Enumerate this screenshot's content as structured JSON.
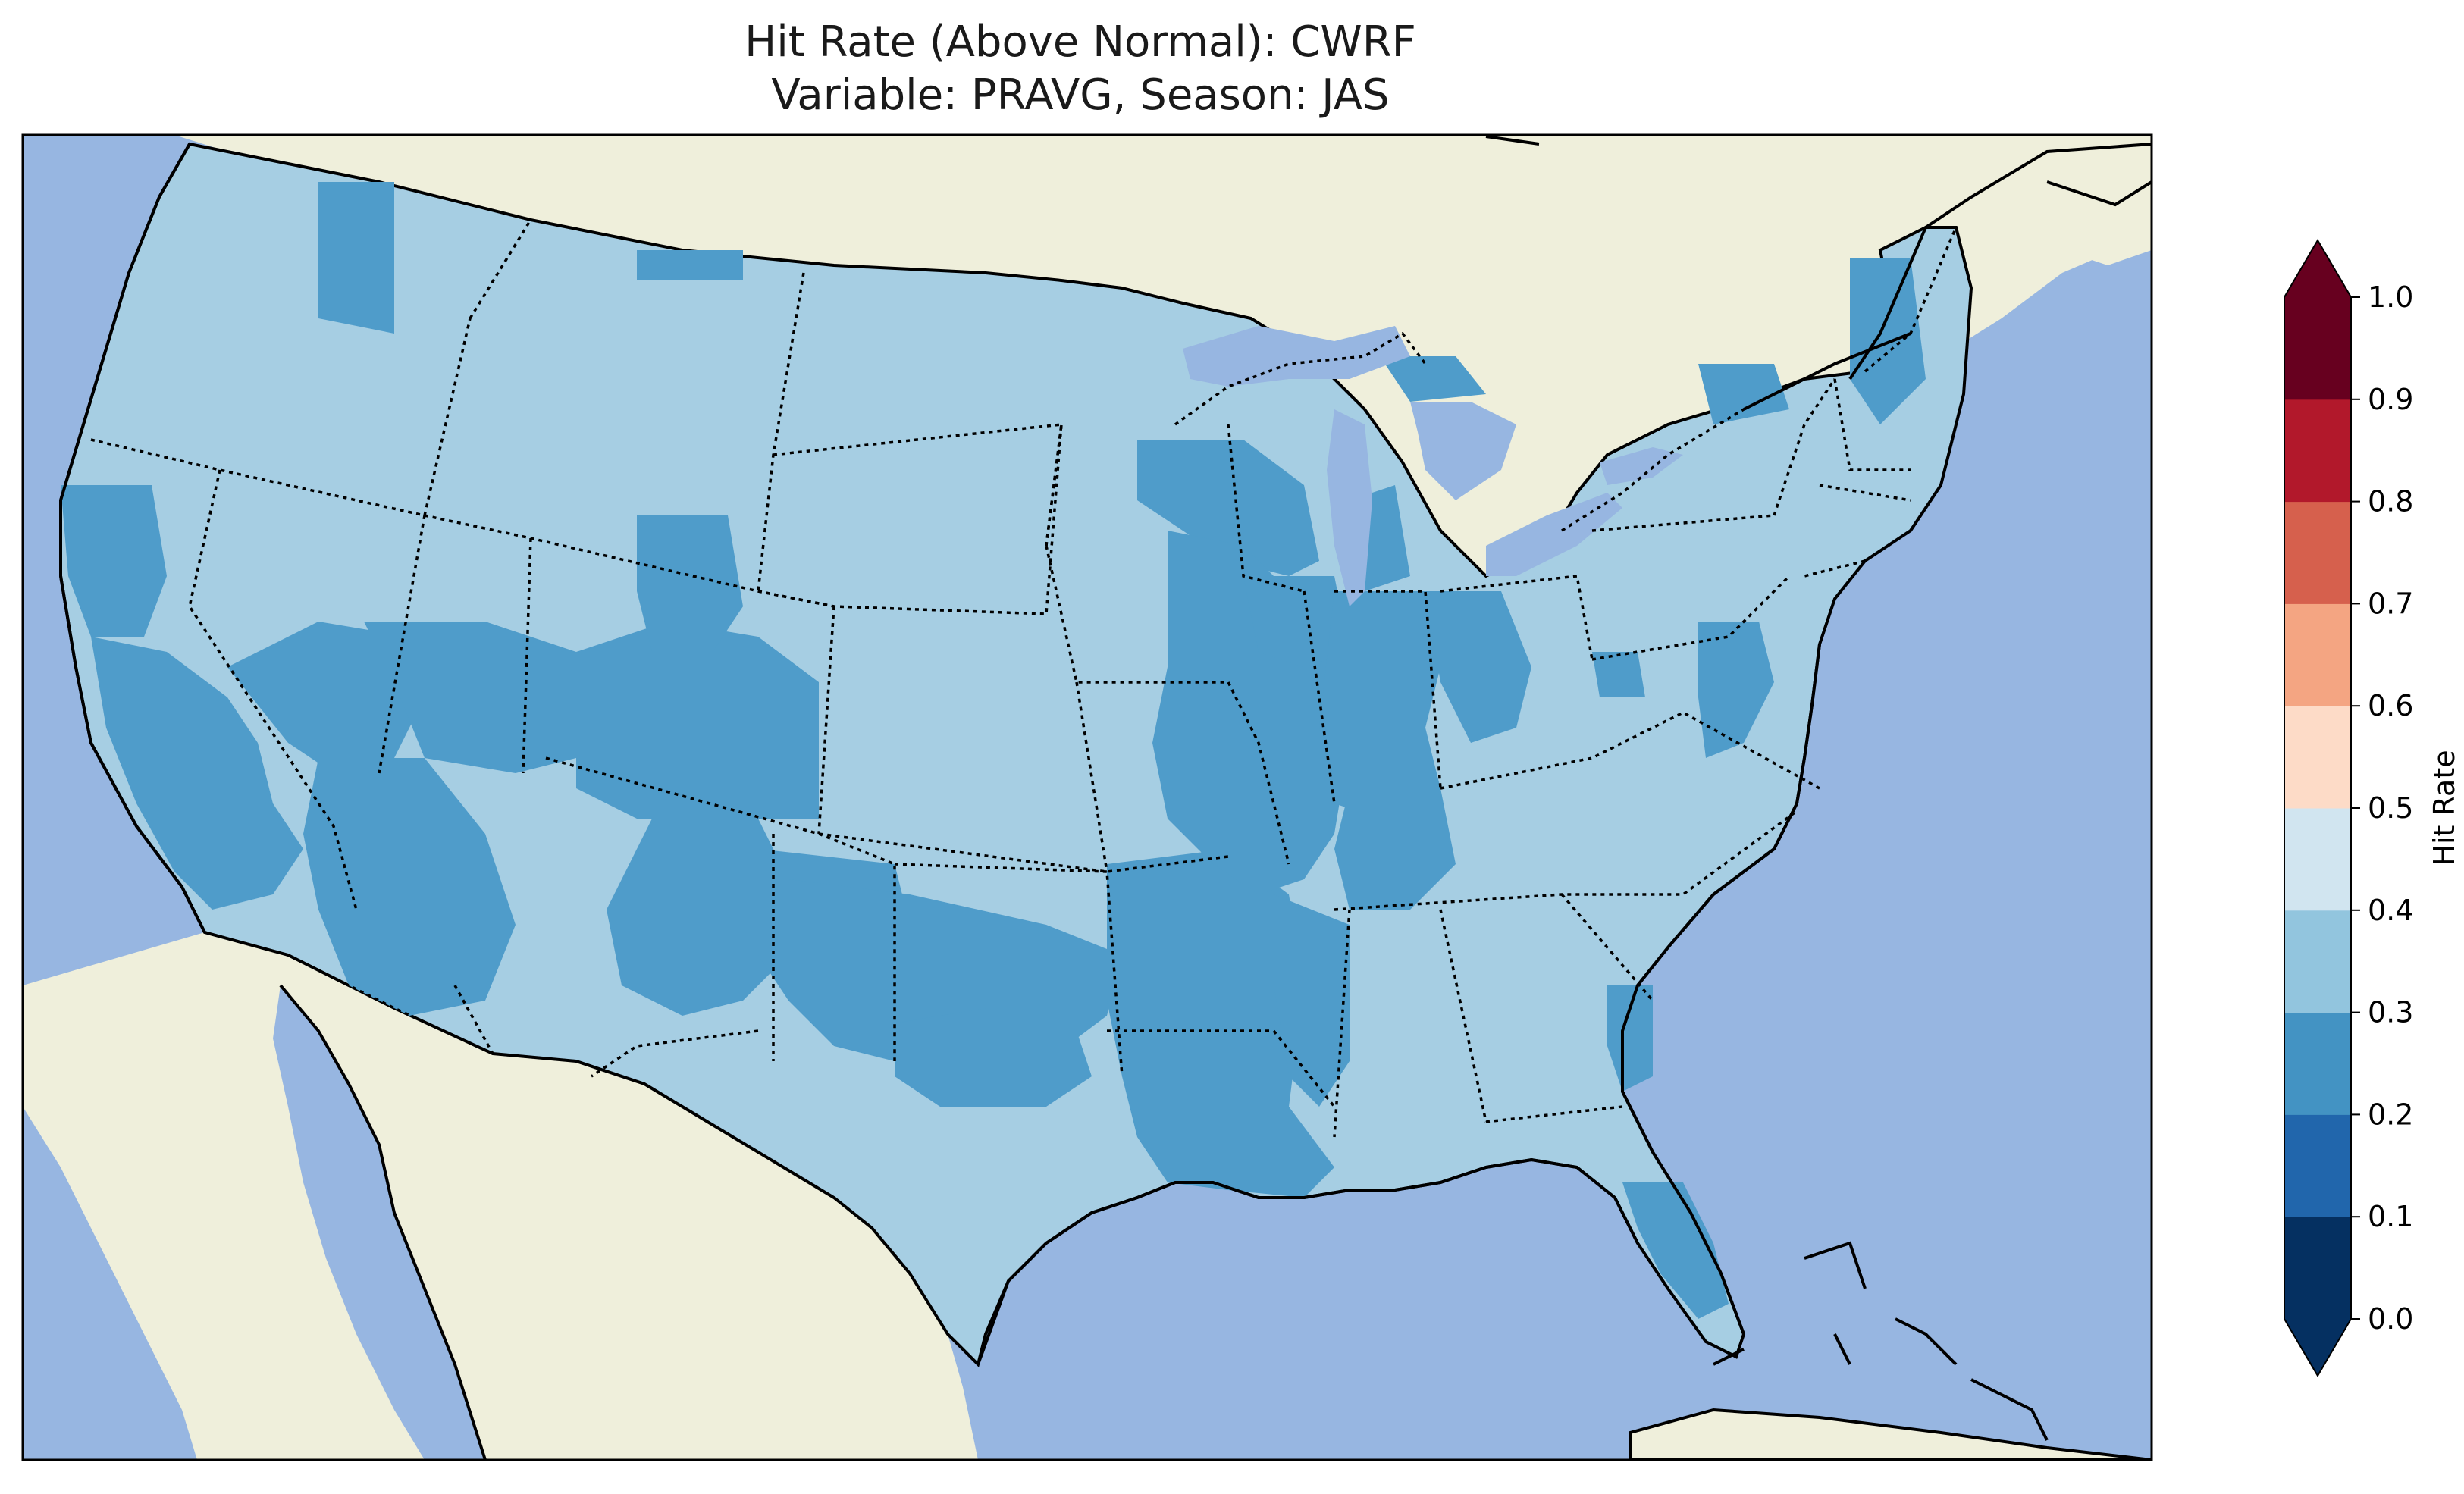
{
  "title": {
    "line1": "Hit Rate (Above Normal): CWRF",
    "line2": "Variable: PRAVG, Season: JAS"
  },
  "colorbar": {
    "label": "Hit Rate",
    "ticks": [
      "0.0",
      "0.1",
      "0.2",
      "0.3",
      "0.4",
      "0.5",
      "0.6",
      "0.7",
      "0.8",
      "0.9",
      "1.0"
    ],
    "colors": [
      "#053061",
      "#2166ac",
      "#4393c3",
      "#92c5de",
      "#d1e5f0",
      "#fddbc7",
      "#f4a582",
      "#d6604d",
      "#b2182b",
      "#67001f"
    ],
    "extend_low_color": "#053061",
    "extend_high_color": "#67001f"
  },
  "map": {
    "ocean_color": "#97b6e1",
    "land_color": "#efefdb",
    "class_0.3_0.4_color": "#a6cee3",
    "class_0.2_0.3_color": "#4f9cca"
  }
}
